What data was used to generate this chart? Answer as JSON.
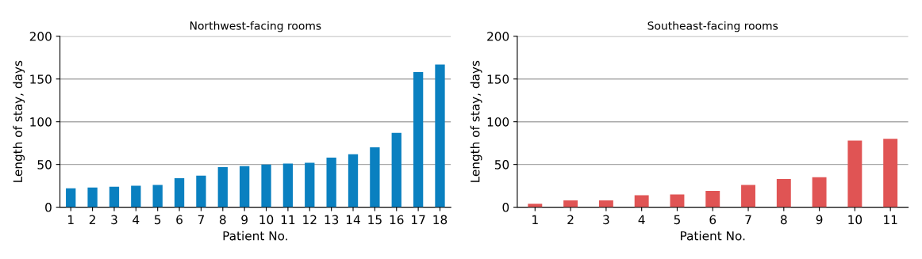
{
  "chart_data": [
    {
      "type": "bar",
      "title": "Northwest-facing rooms",
      "xlabel": "Patient No.",
      "ylabel": "Length of stay, days",
      "categories": [
        "1",
        "2",
        "3",
        "4",
        "5",
        "6",
        "7",
        "8",
        "9",
        "10",
        "11",
        "12",
        "13",
        "14",
        "15",
        "16",
        "17",
        "18"
      ],
      "values": [
        22,
        23,
        24,
        25,
        26,
        34,
        37,
        47,
        48,
        50,
        51,
        52,
        58,
        62,
        70,
        87,
        158,
        167
      ],
      "color": "#0a80c0",
      "ylim": [
        0,
        200
      ],
      "yticks": [
        0,
        50,
        100,
        150,
        200
      ],
      "grid": "y"
    },
    {
      "type": "bar",
      "title": "Southeast-facing rooms",
      "xlabel": "Patient No.",
      "ylabel": "Length of stay, days",
      "categories": [
        "1",
        "2",
        "3",
        "4",
        "5",
        "6",
        "7",
        "8",
        "9",
        "10",
        "11"
      ],
      "values": [
        4,
        8,
        8,
        14,
        15,
        19,
        26,
        33,
        35,
        78,
        80
      ],
      "color": "#e05454",
      "ylim": [
        0,
        200
      ],
      "yticks": [
        0,
        50,
        100,
        150,
        200
      ],
      "grid": "y"
    }
  ]
}
